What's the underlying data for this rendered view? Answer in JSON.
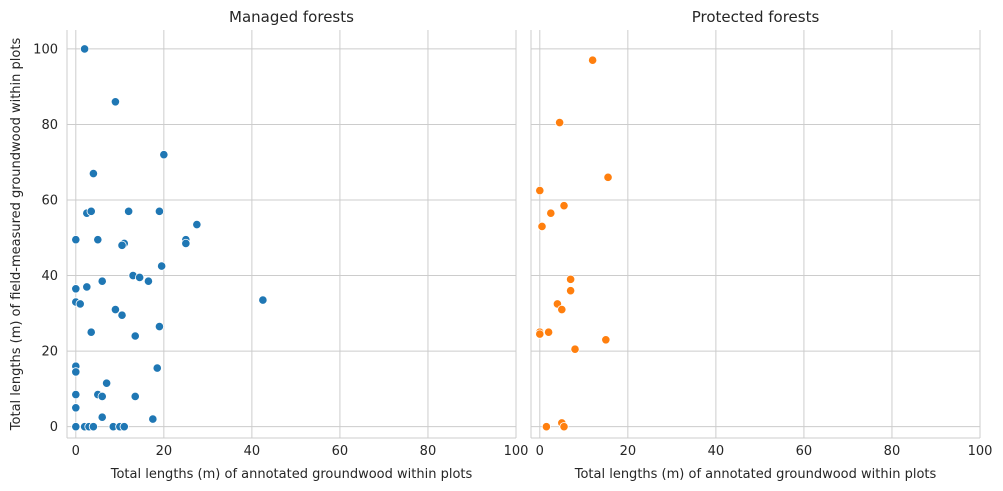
{
  "chart_data": [
    {
      "type": "scatter",
      "title": "Managed forests",
      "xlabel": "Total lengths (m) of annotated groundwood within plots",
      "ylabel": "Total lengths (m) of field-measured groundwood within plots",
      "xlim": [
        -2,
        100
      ],
      "ylim": [
        -3,
        105
      ],
      "xticks": [
        0,
        20,
        40,
        60,
        80,
        100
      ],
      "yticks": [
        0,
        20,
        40,
        60,
        80,
        100
      ],
      "grid": true,
      "color": "#1f77b4",
      "x": [
        2,
        9,
        20,
        4,
        2.5,
        3.5,
        12,
        19,
        27.5,
        0,
        5,
        11,
        25,
        25,
        10.5,
        0,
        19.5,
        13,
        14.5,
        16.5,
        6,
        2.5,
        0,
        0,
        1,
        42.5,
        9,
        10.5,
        19,
        3.5,
        13.5,
        0,
        18.5,
        0,
        7,
        0,
        5,
        6,
        13.5,
        0,
        6,
        17.5,
        0,
        2,
        3,
        4,
        8.5,
        10,
        11
      ],
      "y": [
        100,
        86,
        72,
        67,
        56.5,
        57,
        57,
        57,
        53.5,
        49.5,
        49.5,
        48.5,
        49.5,
        48.5,
        48,
        36.5,
        42.5,
        40,
        39.5,
        38.5,
        38.5,
        37,
        33,
        36.5,
        32.5,
        33.5,
        31,
        29.5,
        26.5,
        25,
        24,
        16,
        15.5,
        14.5,
        11.5,
        8.5,
        8.5,
        8,
        8,
        5,
        2.5,
        2,
        0,
        0,
        0,
        0,
        0,
        0,
        0
      ]
    },
    {
      "type": "scatter",
      "title": "Protected forests",
      "xlabel": "Total lengths (m) of annotated groundwood within plots",
      "ylabel": "",
      "xlim": [
        -2,
        100
      ],
      "ylim": [
        -3,
        105
      ],
      "xticks": [
        0,
        20,
        40,
        60,
        80,
        100
      ],
      "yticks": [
        0,
        20,
        40,
        60,
        80,
        100
      ],
      "grid": true,
      "color": "#ff7f0e",
      "x": [
        12,
        4.5,
        15.5,
        0,
        5.5,
        2.5,
        0.5,
        7,
        7,
        4,
        5,
        0,
        2,
        15,
        8,
        0,
        1.5,
        5,
        5.5
      ],
      "y": [
        97,
        80.5,
        66,
        62.5,
        58.5,
        56.5,
        53,
        39,
        36,
        32.5,
        31,
        25,
        25,
        23,
        20.5,
        24.5,
        0,
        1,
        0
      ]
    }
  ]
}
